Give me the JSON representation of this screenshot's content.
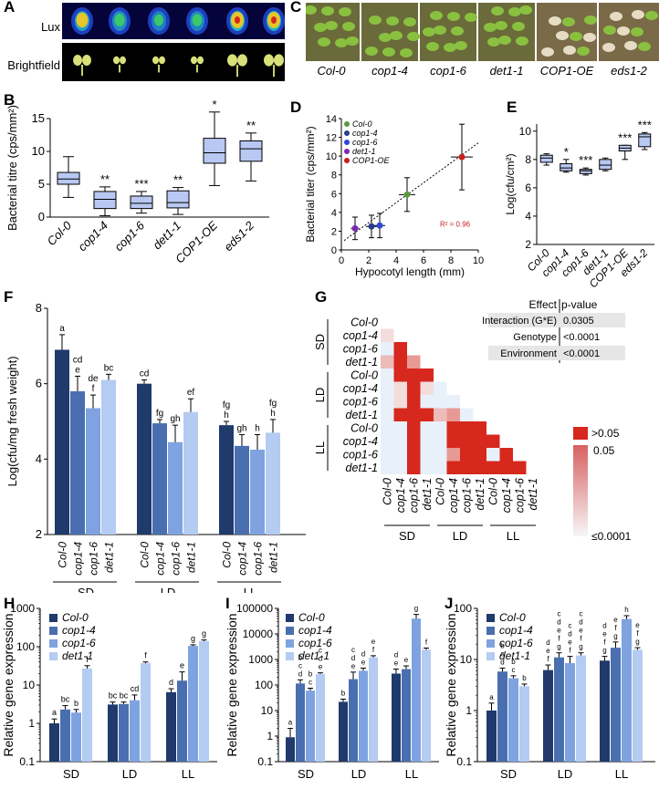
{
  "panels": {
    "a": "A",
    "b": "B",
    "c": "C",
    "d": "D",
    "e": "E",
    "f": "F",
    "g": "G",
    "h": "H",
    "i": "I",
    "j": "J"
  },
  "panelA": {
    "lux_label": "Lux",
    "bright_label": "Brightfield"
  },
  "panelC": {
    "genotypes": [
      "Col-0",
      "cop1-4",
      "cop1-6",
      "det1-1",
      "COP1-OE",
      "eds1-2"
    ]
  },
  "colors": {
    "box": "#b8c8f2",
    "sd": "#1f3a6b",
    "cop14": "#4a6fb0",
    "cop16": "#7ea3e0",
    "det11": "#b4cbf2",
    "heat_hi": "#d7281e",
    "heat_lo": "#e8f1fa"
  },
  "chart_data": [
    {
      "id": "B",
      "type": "box",
      "ylabel": "Bacterial titre (cps/mm²)",
      "ylim": [
        0,
        15
      ],
      "yticks": [
        0,
        5,
        10,
        15
      ],
      "categories": [
        "Col-0",
        "cop1-4",
        "cop1-6",
        "det1-1",
        "COP1-OE",
        "eds1-2"
      ],
      "boxes": [
        {
          "min": 3.0,
          "q1": 5.0,
          "median": 5.8,
          "q3": 6.8,
          "max": 9.2
        },
        {
          "min": 0.2,
          "q1": 1.3,
          "median": 2.7,
          "q3": 3.9,
          "max": 4.6
        },
        {
          "min": 0.6,
          "q1": 1.3,
          "median": 2.1,
          "q3": 3.2,
          "max": 3.9
        },
        {
          "min": 0.4,
          "q1": 1.4,
          "median": 2.2,
          "q3": 4.0,
          "max": 4.5
        },
        {
          "min": 4.8,
          "q1": 8.2,
          "median": 9.8,
          "q3": 12.0,
          "max": 16.0
        },
        {
          "min": 5.5,
          "q1": 8.5,
          "median": 10.4,
          "q3": 11.6,
          "max": 12.8
        }
      ],
      "stars": [
        "",
        "**",
        "***",
        "**",
        "*",
        "**"
      ]
    },
    {
      "id": "D",
      "type": "scatter",
      "xlabel": "Hypocotyl length (mm)",
      "ylabel": "Bacterial titer (cps/mm²)",
      "xlim": [
        0,
        10
      ],
      "ylim": [
        0,
        14
      ],
      "xticks": [
        0,
        2,
        4,
        6,
        8,
        10
      ],
      "yticks": [
        0,
        2,
        4,
        6,
        8,
        10,
        12,
        14
      ],
      "points": [
        {
          "name": "Col-0",
          "x": 4.8,
          "y": 5.9,
          "xerr": 0.6,
          "yerr": 1.8,
          "color": "#5a9a3a"
        },
        {
          "name": "cop1-4",
          "x": 2.2,
          "y": 2.5,
          "xerr": 0.4,
          "yerr": 1.2,
          "color": "#2c3c8c"
        },
        {
          "name": "cop1-6",
          "x": 2.8,
          "y": 2.6,
          "xerr": 0.4,
          "yerr": 1.3,
          "color": "#3048d8"
        },
        {
          "name": "det1-1",
          "x": 1.0,
          "y": 2.3,
          "xerr": 0.3,
          "yerr": 1.2,
          "color": "#7a2ab0"
        },
        {
          "name": "COP1-OE",
          "x": 8.8,
          "y": 9.9,
          "xerr": 0.8,
          "yerr": 3.5,
          "color": "#c81e1e"
        }
      ],
      "fit": {
        "x0": 0.2,
        "y0": 1.0,
        "x1": 10.0,
        "y1": 11.4
      },
      "r2": "R² = 0.96",
      "legend": [
        "Col-0",
        "cop1-4",
        "cop1-6",
        "det1-1",
        "COP1-OE"
      ]
    },
    {
      "id": "E",
      "type": "box",
      "ylabel": "Log(cfu/cm²)",
      "ylim": [
        2,
        10.5
      ],
      "yticks": [
        2,
        4,
        6,
        8,
        10
      ],
      "categories": [
        "Col-0",
        "cop1-4",
        "cop1-6",
        "det1-1",
        "COP1-OE",
        "eds1-2"
      ],
      "boxes": [
        {
          "min": 7.6,
          "q1": 7.8,
          "median": 8.1,
          "q3": 8.3,
          "max": 8.4
        },
        {
          "min": 7.1,
          "q1": 7.2,
          "median": 7.4,
          "q3": 7.7,
          "max": 8.0
        },
        {
          "min": 6.9,
          "q1": 7.0,
          "median": 7.2,
          "q3": 7.3,
          "max": 7.4
        },
        {
          "min": 7.2,
          "q1": 7.3,
          "median": 7.6,
          "q3": 8.0,
          "max": 8.1
        },
        {
          "min": 8.0,
          "q1": 8.6,
          "median": 8.8,
          "q3": 9.0,
          "max": 9.0
        },
        {
          "min": 8.7,
          "q1": 8.9,
          "median": 9.6,
          "q3": 9.8,
          "max": 9.9
        }
      ],
      "stars": [
        "",
        "*",
        "***",
        "",
        "***",
        "***"
      ]
    },
    {
      "id": "F",
      "type": "bar",
      "ylabel": "Log(cfu/mg fresh weight)",
      "ylim": [
        2,
        8
      ],
      "yticks": [
        2,
        4,
        6,
        8
      ],
      "groups": [
        "SD",
        "LD",
        "LL"
      ],
      "series_names": [
        "Col-0",
        "cop1-4",
        "cop1-6",
        "det1-1"
      ],
      "values": [
        [
          6.9,
          5.8,
          5.35,
          6.1
        ],
        [
          6.0,
          4.95,
          4.45,
          5.25
        ],
        [
          4.9,
          4.35,
          4.25,
          4.7
        ]
      ],
      "errors": [
        [
          0.4,
          0.4,
          0.35,
          0.15
        ],
        [
          0.1,
          0.1,
          0.45,
          0.35
        ],
        [
          0.1,
          0.3,
          0.4,
          0.35
        ]
      ],
      "letters": [
        [
          "a",
          "cd\ne",
          "de\nf",
          "bc"
        ],
        [
          "cd",
          "fg",
          "gh",
          "ef"
        ],
        [
          "fg\nh",
          "gh",
          "h",
          "fg\nh"
        ]
      ]
    },
    {
      "id": "G",
      "type": "heatmap",
      "row_labels": [
        "Col-0",
        "cop1-4",
        "cop1-6",
        "det1-1",
        "Col-0",
        "cop1-4",
        "cop1-6",
        "det1-1",
        "Col-0",
        "cop1-4",
        "cop1-6",
        "det1-1"
      ],
      "col_labels": [
        "Col-0",
        "cop1-4",
        "cop1-6",
        "det1-1",
        "Col-0",
        "cop1-4",
        "cop1-6",
        "det1-1",
        "Col-0",
        "cop1-4",
        "cop1-6",
        "det1-1"
      ],
      "group_labels": [
        "SD",
        "LD",
        "LL"
      ],
      "matrix": [
        [
          null,
          null,
          null,
          null,
          null,
          null,
          null,
          null,
          null,
          null,
          null,
          null
        ],
        [
          0.02,
          null,
          null,
          null,
          null,
          null,
          null,
          null,
          null,
          null,
          null,
          null
        ],
        [
          0.01,
          1,
          null,
          null,
          null,
          null,
          null,
          null,
          null,
          null,
          null,
          null
        ],
        [
          0.3,
          1,
          0.5,
          null,
          null,
          null,
          null,
          null,
          null,
          null,
          null,
          null
        ],
        [
          0.01,
          1,
          1,
          1,
          null,
          null,
          null,
          null,
          null,
          null,
          null,
          null
        ],
        [
          0.01,
          0.05,
          1,
          0.02,
          0.01,
          null,
          null,
          null,
          null,
          null,
          null,
          null
        ],
        [
          0.01,
          0.02,
          1,
          0.01,
          0.01,
          0.01,
          null,
          null,
          null,
          null,
          null,
          null
        ],
        [
          0.01,
          1,
          1,
          1,
          0.3,
          0.8,
          0.01,
          null,
          null,
          null,
          null,
          null
        ],
        [
          0.01,
          0.01,
          1,
          0.01,
          0.01,
          1,
          1,
          1,
          null,
          null,
          null,
          null
        ],
        [
          0.01,
          0.01,
          1,
          0.01,
          0.01,
          1,
          1,
          1,
          1,
          null,
          null,
          null
        ],
        [
          0.01,
          0.01,
          1,
          0.01,
          0.01,
          0.6,
          1,
          1,
          0.01,
          1,
          null,
          null
        ],
        [
          0.01,
          0.01,
          1,
          0.01,
          0.01,
          1,
          1,
          1,
          1,
          1,
          1,
          null
        ]
      ],
      "table": {
        "header": [
          "Effect",
          "p-value"
        ],
        "rows": [
          [
            "Interaction (G*E)",
            "0.0305"
          ],
          [
            "Genotype",
            "<0.0001"
          ],
          [
            "Environment",
            "<0.0001"
          ]
        ]
      },
      "colorbar": [
        ">0.05",
        "0.05",
        "≤0.0001"
      ]
    },
    {
      "id": "H",
      "type": "bar",
      "scale": "log",
      "ylabel": "Relative gene expression",
      "ylim": [
        0.1,
        1000
      ],
      "yticks": [
        "0.1",
        "1",
        "10",
        "100",
        "1000"
      ],
      "groups": [
        "SD",
        "LD",
        "LL"
      ],
      "series_names": [
        "Col-0",
        "cop1-4",
        "cop1-6",
        "det1-1"
      ],
      "values": [
        [
          1.0,
          2.3,
          1.9,
          27
        ],
        [
          3.1,
          3.2,
          4.0,
          37
        ],
        [
          6.5,
          13,
          105,
          140
        ]
      ],
      "err_hi": [
        [
          1.3,
          2.9,
          2.3,
          32
        ],
        [
          3.6,
          3.6,
          5.5,
          40
        ],
        [
          8.0,
          22,
          112,
          150
        ]
      ],
      "letters": [
        [
          "a",
          "bc",
          "b",
          "f"
        ],
        [
          "bc",
          "bc",
          "cd",
          "f"
        ],
        [
          "d",
          "e",
          "g",
          "g"
        ]
      ]
    },
    {
      "id": "I",
      "type": "bar",
      "scale": "log",
      "ylabel": "Relative gene expression",
      "ylim": [
        0.1,
        100000
      ],
      "yticks": [
        "0.1",
        "1",
        "10",
        "100",
        "1000",
        "10000",
        "100000"
      ],
      "groups": [
        "SD",
        "LD",
        "LL"
      ],
      "series_names": [
        "Col-0",
        "cop1-4",
        "cop1-6",
        "det1-1"
      ],
      "values": [
        [
          0.9,
          115,
          60,
          270
        ],
        [
          22,
          170,
          360,
          1200
        ],
        [
          280,
          420,
          40000,
          2400
        ]
      ],
      "err_hi": [
        [
          2.0,
          160,
          75,
          300
        ],
        [
          28,
          320,
          460,
          1400
        ],
        [
          420,
          560,
          58000,
          2800
        ]
      ],
      "letters": [
        [
          "a",
          "b\nc\nd",
          "b\nc",
          "c\nd\ne"
        ],
        [
          "b",
          "c\nd\ne",
          "d\ne",
          "e\nf"
        ],
        [
          "d\ne",
          "e",
          "g",
          "f"
        ]
      ]
    },
    {
      "id": "J",
      "type": "bar",
      "scale": "log",
      "ylabel": "Relative gene expression",
      "ylim": [
        0.1,
        100
      ],
      "yticks": [
        "0.1",
        "1",
        "10",
        "100"
      ],
      "groups": [
        "SD",
        "LD",
        "LL"
      ],
      "series_names": [
        "Col-0",
        "cop1-4",
        "cop1-6",
        "det1-1"
      ],
      "values": [
        [
          1.0,
          5.8,
          4.3,
          3.0
        ],
        [
          6.2,
          11,
          8.5,
          12
        ],
        [
          9.5,
          17,
          62,
          15.5
        ]
      ],
      "err_hi": [
        [
          1.4,
          6.8,
          4.8,
          3.3
        ],
        [
          7.8,
          13.5,
          11.5,
          13.5
        ],
        [
          11.5,
          22,
          72,
          17
        ]
      ],
      "letters": [
        [
          "a",
          "b\nc\nd",
          "b\nc",
          "b"
        ],
        [
          "d\ne\nf",
          "c\nd\ne\nf\ng",
          "c\nd\ne\nf",
          "c\nd\ne\nf\ng"
        ],
        [
          "d\ne\nf\ng",
          "e\nf\ng",
          "h",
          "e\nf\ng"
        ]
      ]
    }
  ]
}
